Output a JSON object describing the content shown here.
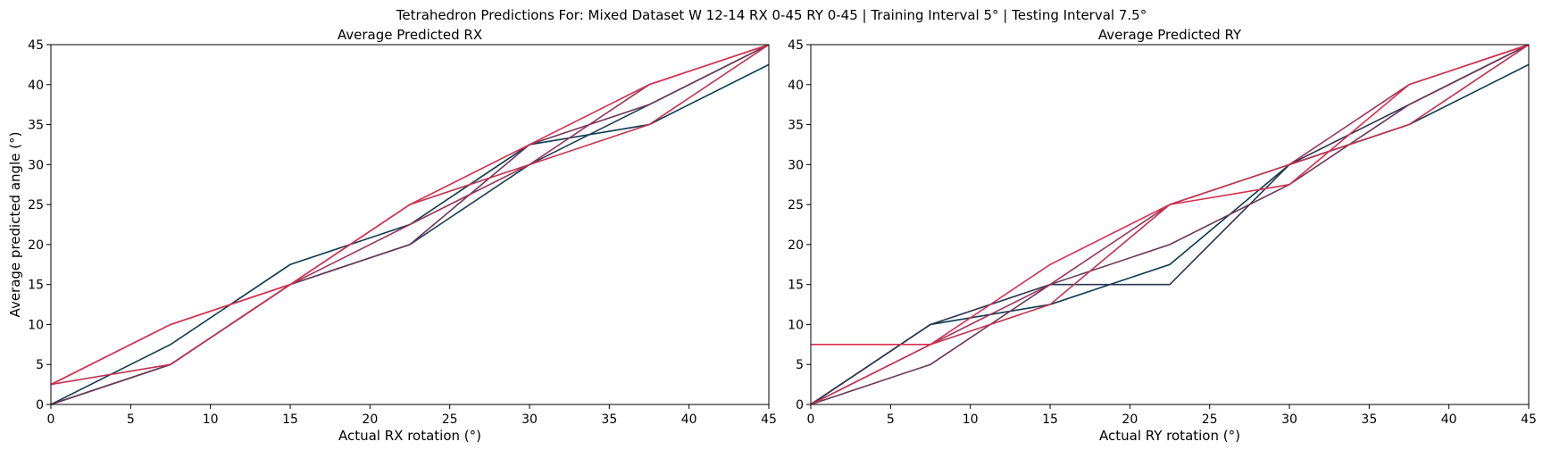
{
  "figure": {
    "title": "Tetrahedron Predictions For: Mixed Dataset W 12-14 RX 0-45 RY 0-45 | Training Interval 5° | Testing Interval 7.5°"
  },
  "chart_data": [
    {
      "type": "line",
      "title": "Average Predicted RX",
      "xlabel": "Actual RX rotation (°)",
      "ylabel": "Average predicted angle (°)",
      "xlim": [
        0,
        45
      ],
      "ylim": [
        0,
        45
      ],
      "xticks": [
        "0",
        "5",
        "10",
        "15",
        "20",
        "25",
        "30",
        "35",
        "40",
        "45"
      ],
      "yticks": [
        "0",
        "5",
        "10",
        "15",
        "20",
        "25",
        "30",
        "35",
        "40",
        "45"
      ],
      "grid": false,
      "x": [
        0,
        7.5,
        15,
        22.5,
        30,
        37.5,
        45
      ],
      "series": [
        {
          "color": "#0d3b52",
          "values": [
            0,
            7.5,
            17.5,
            22.5,
            32.5,
            35,
            42.5
          ]
        },
        {
          "color": "#1f3f5a",
          "values": [
            0,
            5,
            15,
            20,
            30,
            37.5,
            45
          ]
        },
        {
          "color": "#6b3556",
          "values": [
            0,
            5,
            15,
            20,
            32.5,
            37.5,
            45
          ]
        },
        {
          "color": "#9a3458",
          "values": [
            2.5,
            10,
            15,
            22.5,
            30,
            40,
            45
          ]
        },
        {
          "color": "#c43050",
          "values": [
            2.5,
            5,
            15,
            25,
            30,
            35,
            45
          ]
        },
        {
          "color": "#d62f4f",
          "values": [
            2.5,
            10,
            15,
            25,
            32.5,
            40,
            45
          ]
        }
      ]
    },
    {
      "type": "line",
      "title": "Average Predicted RY",
      "xlabel": "Actual RY rotation (°)",
      "ylabel": "",
      "xlim": [
        0,
        45
      ],
      "ylim": [
        0,
        45
      ],
      "xticks": [
        "0",
        "5",
        "10",
        "15",
        "20",
        "25",
        "30",
        "35",
        "40",
        "45"
      ],
      "yticks": [
        "0",
        "5",
        "10",
        "15",
        "20",
        "25",
        "30",
        "35",
        "40",
        "45"
      ],
      "grid": false,
      "x": [
        0,
        7.5,
        15,
        22.5,
        30,
        37.5,
        45
      ],
      "series": [
        {
          "color": "#0d3b52",
          "values": [
            0,
            10,
            12.5,
            17.5,
            30,
            35,
            42.5
          ]
        },
        {
          "color": "#2a3550",
          "values": [
            0,
            10,
            15,
            15,
            30,
            37.5,
            45
          ]
        },
        {
          "color": "#6b3556",
          "values": [
            0,
            5,
            15,
            20,
            27.5,
            37.5,
            45
          ]
        },
        {
          "color": "#9a3458",
          "values": [
            0,
            7.5,
            15,
            25,
            30,
            40,
            45
          ]
        },
        {
          "color": "#c43050",
          "values": [
            0,
            7.5,
            12.5,
            25,
            30,
            35,
            45
          ]
        },
        {
          "color": "#d62f4f",
          "values": [
            7.5,
            7.5,
            17.5,
            25,
            27.5,
            40,
            45
          ]
        }
      ]
    }
  ]
}
